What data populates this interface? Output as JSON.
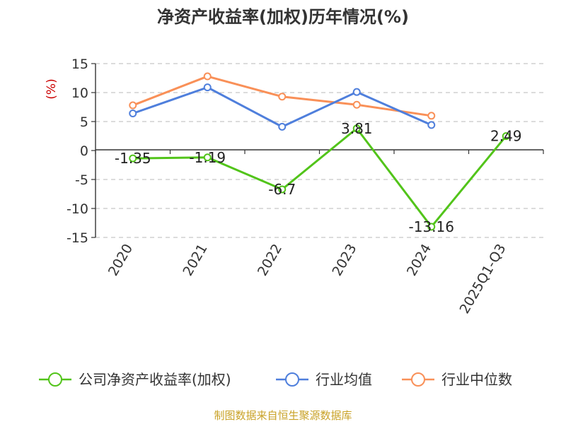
{
  "chart_data": {
    "type": "line",
    "title": "净资产收益率(加权)历年情况(%)",
    "unit_label": "(%)",
    "categories": [
      "2020",
      "2021",
      "2022",
      "2023",
      "2024",
      "2025Q1-Q3"
    ],
    "ylim": [
      -15,
      15
    ],
    "yticks": [
      15,
      10,
      5,
      0,
      -5,
      -10,
      -15
    ],
    "grid": true,
    "legend_position": "bottom",
    "series": [
      {
        "name": "公司净资产收益率(加权)",
        "color": "#52c41a",
        "values": [
          -1.35,
          -1.19,
          -6.7,
          3.81,
          -13.16,
          2.49
        ],
        "labels": [
          "-1.35",
          "-1.19",
          "-6.7",
          "3.81",
          "-13.16",
          "2.49"
        ],
        "show_labels": true
      },
      {
        "name": "行业均值",
        "color": "#4f7fdc",
        "values": [
          6.4,
          10.9,
          4.1,
          10.1,
          4.4,
          null
        ],
        "show_labels": false
      },
      {
        "name": "行业中位数",
        "color": "#f99058",
        "values": [
          7.8,
          12.8,
          9.3,
          7.9,
          6.0,
          null
        ],
        "show_labels": false
      }
    ]
  },
  "footer": {
    "source": "制图数据来自恒生聚源数据库"
  }
}
